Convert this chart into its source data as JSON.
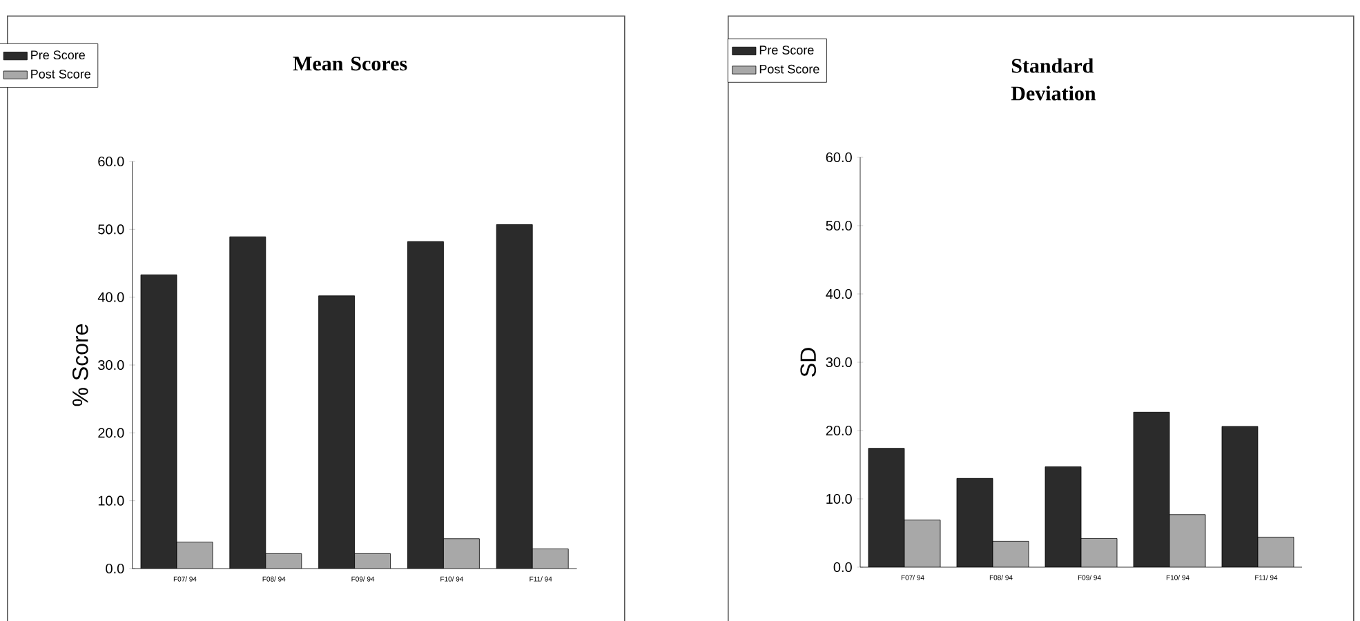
{
  "chart_data": [
    {
      "type": "bar",
      "title": "Mean Scores",
      "ylabel": "% Score",
      "categories": [
        "F07/ 94",
        "F08/ 94",
        "F09/ 94",
        "F10/ 94",
        "F11/ 94"
      ],
      "series": [
        {
          "name": "Pre Score",
          "color": "#2b2b2b",
          "values": [
            43.3,
            48.9,
            40.2,
            48.2,
            50.7
          ]
        },
        {
          "name": "Post Score",
          "color": "#a8a8a8",
          "values": [
            3.9,
            2.2,
            2.2,
            4.4,
            2.9
          ]
        }
      ],
      "ylim": [
        0,
        60
      ],
      "yticks": [
        {
          "value": 0,
          "label": "0.0"
        },
        {
          "value": 10,
          "label": "10.0"
        },
        {
          "value": 20,
          "label": "20.0"
        },
        {
          "value": 30,
          "label": "30.0"
        },
        {
          "value": 40,
          "label": "40.0"
        },
        {
          "value": 50,
          "label": "50.0"
        },
        {
          "value": 60,
          "label": "60.0"
        }
      ],
      "legend": "top left"
    },
    {
      "type": "bar",
      "title": "Standard Deviation",
      "ylabel": "SD",
      "categories": [
        "F07/ 94",
        "F08/ 94",
        "F09/ 94",
        "F10/ 94",
        "F11/ 94"
      ],
      "series": [
        {
          "name": "Pre Score",
          "color": "#2b2b2b",
          "values": [
            17.4,
            13.0,
            14.7,
            22.7,
            20.6
          ]
        },
        {
          "name": "Post Score",
          "color": "#a8a8a8",
          "values": [
            6.9,
            3.8,
            4.2,
            7.7,
            4.4
          ]
        }
      ],
      "ylim": [
        0,
        60
      ],
      "yticks": [
        {
          "value": 0,
          "label": "0.0"
        },
        {
          "value": 10,
          "label": "10.0"
        },
        {
          "value": 20,
          "label": "20.0"
        },
        {
          "value": 30,
          "label": "30.0"
        },
        {
          "value": 40,
          "label": "40.0"
        },
        {
          "value": 50,
          "label": "50.0"
        },
        {
          "value": 60,
          "label": "60.0"
        }
      ],
      "legend": "top left"
    }
  ]
}
